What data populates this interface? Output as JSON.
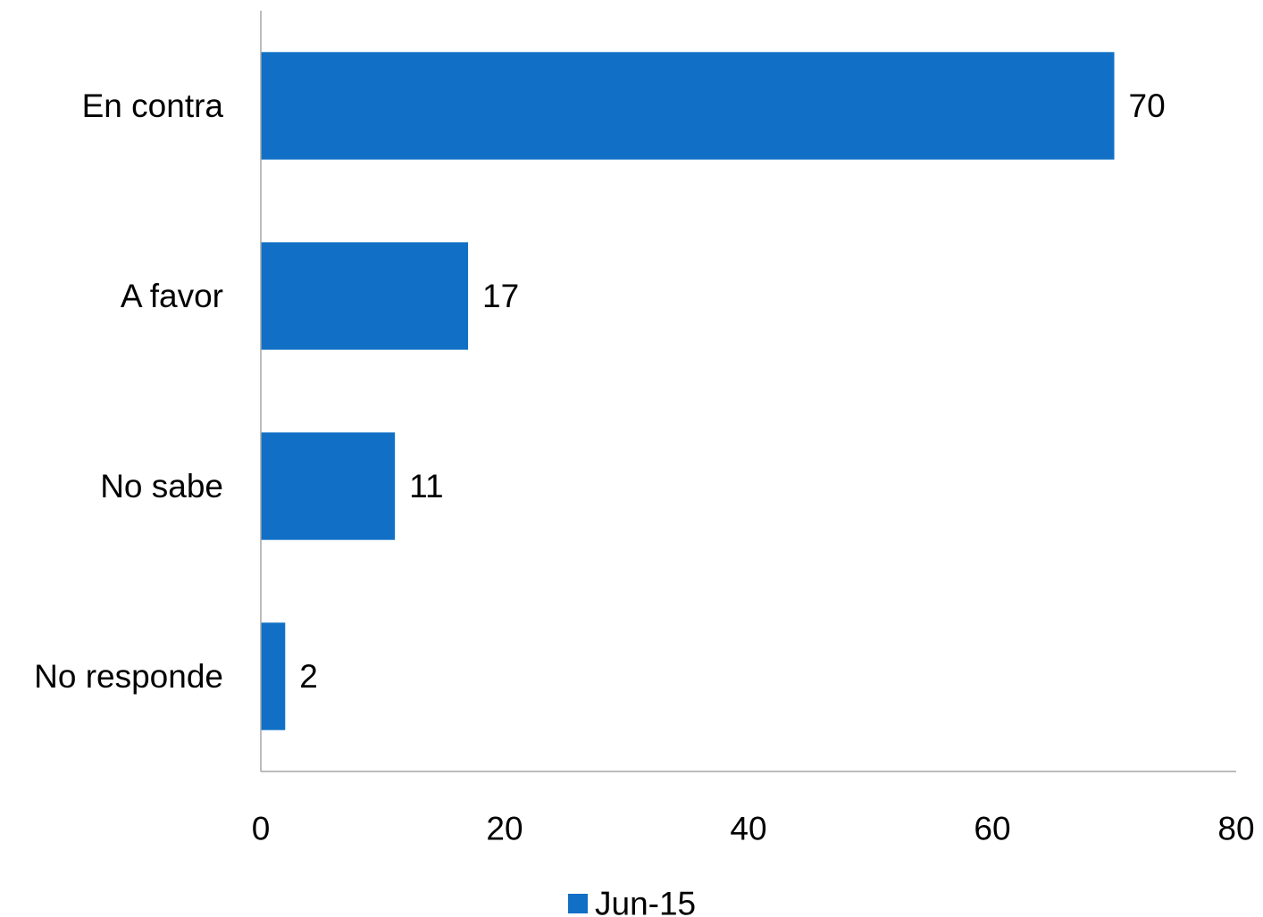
{
  "chart_data": {
    "type": "bar",
    "orientation": "horizontal",
    "categories": [
      "En contra",
      "A favor",
      "No sabe",
      "No responde"
    ],
    "series": [
      {
        "name": "Jun-15",
        "values": [
          70,
          17,
          11,
          2
        ],
        "color": "#1170C6"
      }
    ],
    "data_labels": [
      "70",
      "17",
      "11",
      "2"
    ],
    "xlim": [
      0,
      80
    ],
    "x_ticks": [
      0,
      20,
      40,
      60,
      80
    ],
    "x_tick_labels": [
      "0",
      "20",
      "40",
      "60",
      "80"
    ],
    "grid": false,
    "legend": {
      "position": "bottom",
      "entries": [
        "Jun-15"
      ]
    },
    "colors": {
      "bar": "#1170C6",
      "axis": "#A6A6A6"
    }
  }
}
